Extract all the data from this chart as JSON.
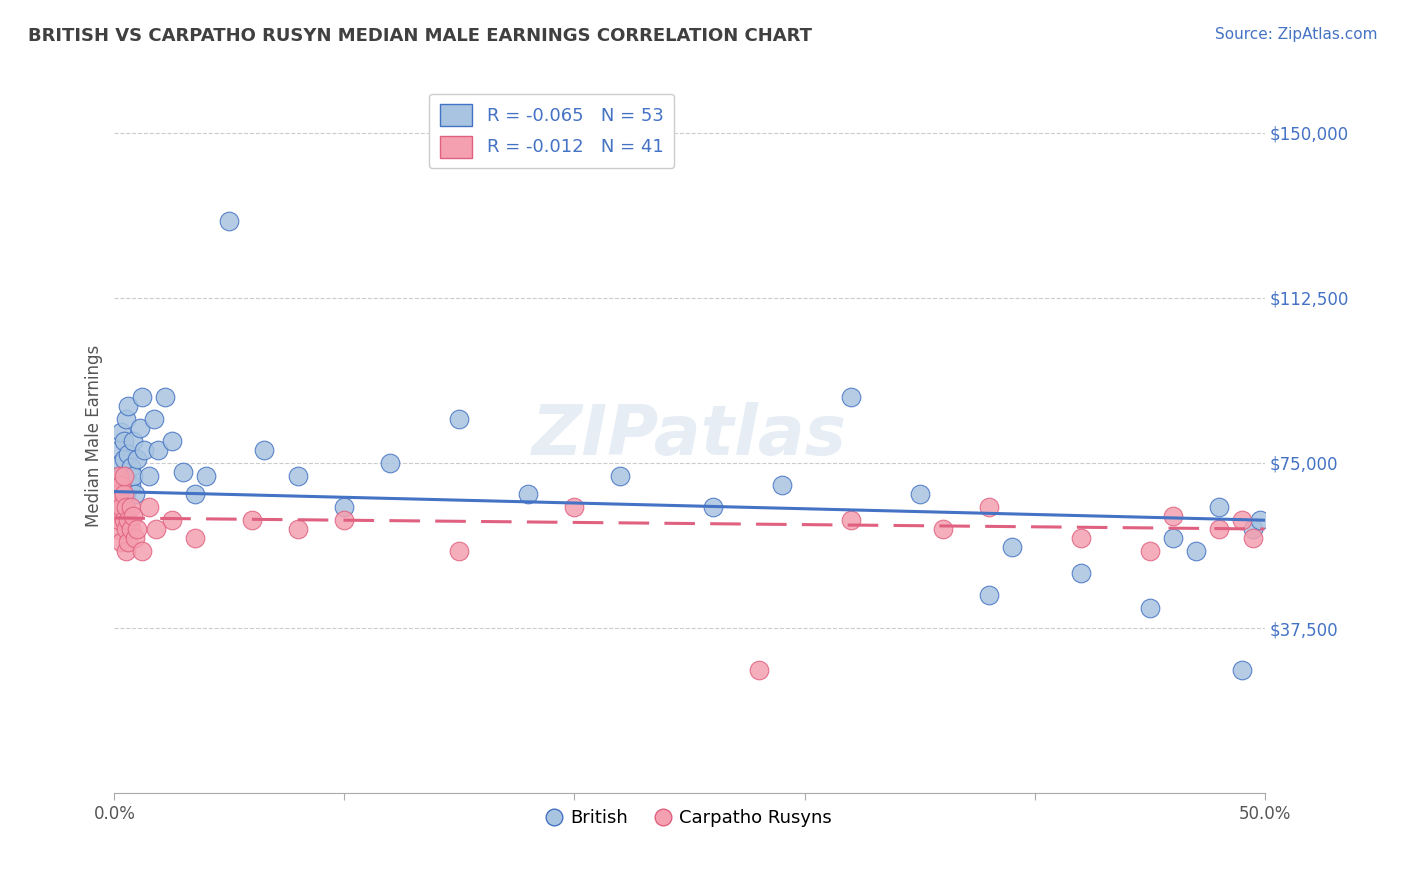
{
  "title": "BRITISH VS CARPATHO RUSYN MEDIAN MALE EARNINGS CORRELATION CHART",
  "source": "Source: ZipAtlas.com",
  "ylabel": "Median Male Earnings",
  "xlim": [
    0.0,
    0.5
  ],
  "ylim": [
    0,
    162500
  ],
  "yticks": [
    0,
    37500,
    75000,
    112500,
    150000
  ],
  "yticklabels": [
    "",
    "$37,500",
    "$75,000",
    "$112,500",
    "$150,000"
  ],
  "british_color": "#a8c4e0",
  "carpatho_color": "#f4a0b0",
  "british_line_color": "#4472c4",
  "carpatho_line_color": "#e06080",
  "title_color": "#404040",
  "source_color": "#4472c4",
  "british_x": [
    0.001,
    0.002,
    0.002,
    0.003,
    0.003,
    0.003,
    0.004,
    0.004,
    0.004,
    0.005,
    0.005,
    0.005,
    0.006,
    0.006,
    0.007,
    0.007,
    0.008,
    0.008,
    0.009,
    0.01,
    0.011,
    0.012,
    0.013,
    0.015,
    0.017,
    0.019,
    0.022,
    0.025,
    0.03,
    0.035,
    0.04,
    0.05,
    0.065,
    0.08,
    0.1,
    0.12,
    0.15,
    0.18,
    0.22,
    0.26,
    0.29,
    0.32,
    0.35,
    0.38,
    0.39,
    0.42,
    0.45,
    0.46,
    0.47,
    0.48,
    0.49,
    0.495,
    0.498
  ],
  "british_y": [
    72000,
    78000,
    68000,
    75000,
    82000,
    70000,
    76000,
    65000,
    80000,
    72000,
    85000,
    68000,
    77000,
    88000,
    74000,
    70000,
    80000,
    72000,
    68000,
    76000,
    83000,
    90000,
    78000,
    72000,
    85000,
    78000,
    90000,
    80000,
    73000,
    68000,
    72000,
    130000,
    78000,
    72000,
    65000,
    75000,
    85000,
    68000,
    72000,
    65000,
    70000,
    90000,
    68000,
    45000,
    56000,
    50000,
    42000,
    58000,
    55000,
    65000,
    28000,
    60000,
    62000
  ],
  "carpatho_x": [
    0.001,
    0.001,
    0.002,
    0.002,
    0.002,
    0.003,
    0.003,
    0.003,
    0.004,
    0.004,
    0.004,
    0.005,
    0.005,
    0.005,
    0.006,
    0.006,
    0.007,
    0.007,
    0.008,
    0.009,
    0.01,
    0.012,
    0.015,
    0.018,
    0.025,
    0.035,
    0.06,
    0.08,
    0.1,
    0.15,
    0.2,
    0.28,
    0.32,
    0.36,
    0.38,
    0.42,
    0.45,
    0.46,
    0.48,
    0.49,
    0.495
  ],
  "carpatho_y": [
    65000,
    60000,
    68000,
    72000,
    62000,
    70000,
    65000,
    57000,
    68000,
    62000,
    72000,
    65000,
    60000,
    55000,
    62000,
    57000,
    65000,
    60000,
    63000,
    58000,
    60000,
    55000,
    65000,
    60000,
    62000,
    58000,
    62000,
    60000,
    62000,
    55000,
    65000,
    28000,
    62000,
    60000,
    65000,
    58000,
    55000,
    63000,
    60000,
    62000,
    58000
  ],
  "british_trend_y0": 68500,
  "british_trend_y1": 62000,
  "carpatho_trend_y0": 62500,
  "carpatho_trend_y1": 60000
}
